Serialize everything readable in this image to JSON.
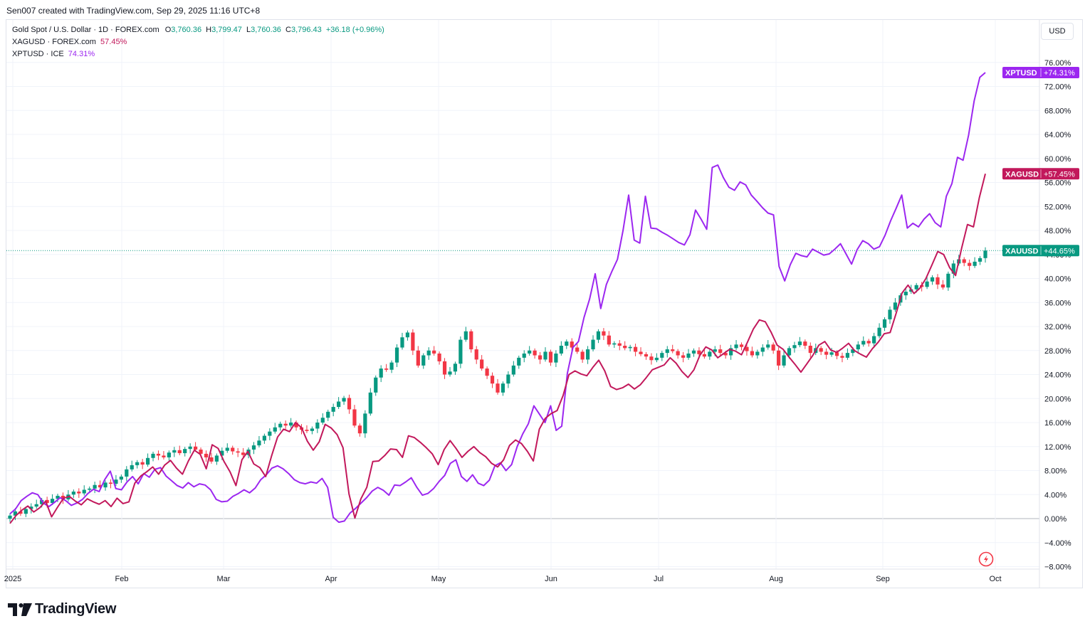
{
  "header": {
    "credit": "Sen007 created with TradingView.com, Sep 29, 2025 11:16 UTC+8"
  },
  "legend": {
    "main": {
      "title": "Gold Spot / U.S. Dollar · 1D · FOREX.com",
      "o_label": "O",
      "o_value": "3,760.36",
      "h_label": "H",
      "h_value": "3,799.47",
      "l_label": "L",
      "l_value": "3,760.36",
      "c_label": "C",
      "c_value": "3,796.43",
      "change": "+36.18 (+0.96%)"
    },
    "silver": {
      "title": "XAGUSD · FOREX.com",
      "value": "57.45%"
    },
    "platinum": {
      "title": "XPTUSD · ICE",
      "value": "74.31%"
    }
  },
  "currency_button": "USD",
  "brand": {
    "name": "TradingView"
  },
  "colors": {
    "up": "#089981",
    "down": "#f23645",
    "silver": "#c2185b",
    "platinum": "#9c27f0",
    "grid": "#f0f3fa",
    "zero": "#b2b5be"
  },
  "chart_data": {
    "type": "line",
    "title": "Gold Spot / U.S. Dollar",
    "y_unit": "percent change",
    "ylim": [
      -8,
      76
    ],
    "y_ticks": [
      "76.00%",
      "72.00%",
      "68.00%",
      "64.00%",
      "60.00%",
      "56.00%",
      "52.00%",
      "48.00%",
      "44.00%",
      "40.00%",
      "36.00%",
      "32.00%",
      "28.00%",
      "24.00%",
      "20.00%",
      "16.00%",
      "12.00%",
      "8.00%",
      "4.00%",
      "0.00%",
      "−4.00%",
      "−8.00%"
    ],
    "x_ticks": [
      "2025",
      "Feb",
      "Mar",
      "Apr",
      "May",
      "Jun",
      "Jul",
      "Aug",
      "Sep",
      "Oct"
    ],
    "grid": true,
    "legend_position": "top-left",
    "last_value_tags": [
      {
        "label": "XPTUSD",
        "value": "+74.31%"
      },
      {
        "label": "XAGUSD",
        "value": "+57.45%"
      },
      {
        "label": "XAUUSD",
        "value": "+44.65%"
      }
    ],
    "series": [
      {
        "name": "XAUUSD",
        "type": "candlestick",
        "close": [
          0.5,
          1.2,
          0.8,
          1.6,
          2.0,
          2.4,
          3.1,
          2.6,
          3.3,
          3.8,
          3.2,
          4.0,
          4.5,
          4.2,
          4.8,
          5.0,
          5.6,
          5.2,
          6.0,
          5.8,
          6.5,
          7.0,
          8.2,
          8.9,
          9.4,
          9.0,
          10.1,
          10.8,
          10.5,
          10.2,
          11.0,
          11.4,
          10.9,
          11.6,
          12.0,
          11.5,
          10.8,
          10.2,
          9.5,
          10.5,
          11.3,
          11.8,
          11.2,
          11.0,
          10.6,
          11.5,
          12.2,
          13.0,
          13.8,
          14.5,
          15.2,
          15.8,
          15.5,
          16.0,
          15.2,
          14.8,
          14.6,
          15.0,
          16.0,
          16.8,
          17.8,
          18.6,
          19.5,
          20.1,
          18.2,
          15.5,
          14.2,
          17.5,
          21.0,
          23.5,
          25.0,
          24.8,
          26.0,
          28.5,
          30.2,
          31.0,
          28.0,
          25.5,
          27.2,
          28.0,
          27.5,
          26.2,
          24.0,
          24.5,
          25.8,
          29.8,
          31.2,
          28.2,
          26.5,
          25.0,
          23.8,
          22.5,
          21.0,
          22.5,
          24.0,
          25.5,
          26.8,
          27.5,
          28.0,
          27.2,
          26.5,
          27.8,
          26.0,
          27.5,
          28.8,
          29.5,
          28.5,
          27.8,
          26.5,
          28.2,
          29.8,
          31.2,
          30.5,
          29.0,
          29.2,
          28.8,
          28.4,
          28.6,
          27.8,
          27.4,
          27.0,
          26.4,
          26.8,
          27.6,
          28.2,
          27.9,
          27.2,
          26.8,
          27.5,
          28.0,
          27.4,
          27.0,
          27.8,
          28.2,
          27.6,
          27.2,
          28.4,
          29.0,
          28.6,
          27.9,
          27.2,
          27.8,
          28.5,
          29.0,
          28.0,
          25.5,
          27.2,
          28.4,
          28.9,
          29.5,
          28.8,
          27.6,
          28.4,
          27.8,
          27.3,
          27.7,
          27.1,
          26.8,
          27.6,
          28.2,
          29.0,
          29.6,
          29.2,
          30.4,
          31.8,
          33.2,
          34.8,
          36.0,
          37.2,
          37.8,
          38.2,
          38.9,
          38.6,
          39.5,
          40.2,
          39.0,
          38.5,
          40.8,
          42.5,
          43.2,
          42.6,
          42.1,
          42.8,
          43.4,
          44.65
        ]
      },
      {
        "name": "XAGUSD",
        "type": "line",
        "values": [
          -0.8,
          0.5,
          1.4,
          2.1,
          1.1,
          1.8,
          2.9,
          0.3,
          1.9,
          3.4,
          3.7,
          2.9,
          2.3,
          3.3,
          2.8,
          2.4,
          3.0,
          2.0,
          3.4,
          2.5,
          2.8,
          5.9,
          7.1,
          7.8,
          8.6,
          7.4,
          8.9,
          9.7,
          8.4,
          7.4,
          9.6,
          11.4,
          10.7,
          8.3,
          12.3,
          11.7,
          9.5,
          7.8,
          5.5,
          9.8,
          11.2,
          9.1,
          8.5,
          7.0,
          10.5,
          13.6,
          14.9,
          14.5,
          16.0,
          15.2,
          12.9,
          11.4,
          12.8,
          15.7,
          15.1,
          14.0,
          11.8,
          4.1,
          0.1,
          3.3,
          5.2,
          9.5,
          9.6,
          10.5,
          11.6,
          11.5,
          10.2,
          13.8,
          13.5,
          12.7,
          11.8,
          10.8,
          9.0,
          11.5,
          13.0,
          11.7,
          10.2,
          11.2,
          12.0,
          11.0,
          10.3,
          9.2,
          8.6,
          9.8,
          12.2,
          13.1,
          12.5,
          11.2,
          9.6,
          14.9,
          16.7,
          17.5,
          18.0,
          20.5,
          24.0,
          24.6,
          24.1,
          23.8,
          25.2,
          26.4,
          24.6,
          22.0,
          21.5,
          21.8,
          22.4,
          21.6,
          22.3,
          23.5,
          24.8,
          25.2,
          25.6,
          26.8,
          25.9,
          24.5,
          23.5,
          24.8,
          27.2,
          28.6,
          28.1,
          26.8,
          27.5,
          28.2,
          27.9,
          27.3,
          29.4,
          31.6,
          33.1,
          32.8,
          31.0,
          28.9,
          28.2,
          26.9,
          25.7,
          24.4,
          25.8,
          27.2,
          28.9,
          29.5,
          28.1,
          27.7,
          28.4,
          29.2,
          28.0,
          27.4,
          26.9,
          28.3,
          29.4,
          30.8,
          31.0,
          34.2,
          37.6,
          38.9,
          37.5,
          38.4,
          40.0,
          42.2,
          44.5,
          44.0,
          41.8,
          40.5,
          45.0,
          49.0,
          48.6,
          53.5,
          57.45
        ]
      },
      {
        "name": "XPTUSD",
        "type": "line",
        "values": [
          0.8,
          1.6,
          3.0,
          3.7,
          4.3,
          4.0,
          2.6,
          2.0,
          2.7,
          3.5,
          3.0,
          2.2,
          2.6,
          3.2,
          4.2,
          4.9,
          4.5,
          6.5,
          7.9,
          5.0,
          4.8,
          6.1,
          7.0,
          5.8,
          7.5,
          6.9,
          8.2,
          8.5,
          7.1,
          6.3,
          5.5,
          5.1,
          6.0,
          5.3,
          5.8,
          5.6,
          4.8,
          3.2,
          2.8,
          2.9,
          3.7,
          4.2,
          4.8,
          4.3,
          5.1,
          6.5,
          7.3,
          8.4,
          8.8,
          8.3,
          7.5,
          6.5,
          6.0,
          5.8,
          6.1,
          5.9,
          6.7,
          5.2,
          0.2,
          -0.6,
          -0.4,
          0.9,
          1.7,
          2.6,
          3.5,
          4.6,
          5.2,
          4.7,
          3.9,
          5.6,
          5.5,
          6.1,
          6.8,
          5.2,
          3.9,
          4.2,
          5.0,
          6.2,
          7.2,
          9.2,
          9.8,
          7.0,
          6.2,
          7.3,
          5.9,
          5.5,
          6.4,
          8.8,
          9.3,
          8.0,
          9.0,
          12.0,
          14.1,
          15.8,
          18.8,
          17.4,
          16.0,
          18.8,
          14.7,
          15.4,
          24.2,
          28.5,
          29.5,
          33.5,
          36.6,
          40.8,
          35.0,
          39.0,
          41.2,
          43.2,
          48.0,
          53.9,
          46.4,
          45.9,
          53.7,
          48.4,
          48.3,
          47.7,
          47.2,
          46.6,
          46.0,
          45.6,
          47.3,
          51.4,
          49.9,
          48.2,
          58.5,
          58.9,
          56.8,
          55.2,
          54.7,
          56.1,
          55.6,
          53.9,
          52.9,
          51.8,
          50.9,
          50.6,
          42.0,
          39.6,
          42.3,
          44.2,
          43.8,
          43.6,
          44.9,
          44.4,
          43.9,
          44.1,
          44.9,
          45.8,
          44.1,
          42.4,
          44.8,
          46.3,
          45.8,
          44.9,
          45.3,
          47.2,
          49.6,
          51.7,
          53.9,
          48.4,
          49.2,
          48.6,
          49.9,
          50.8,
          49.3,
          48.6,
          53.7,
          55.8,
          60.2,
          59.7,
          63.9,
          69.6,
          73.5,
          74.31
        ]
      }
    ]
  }
}
